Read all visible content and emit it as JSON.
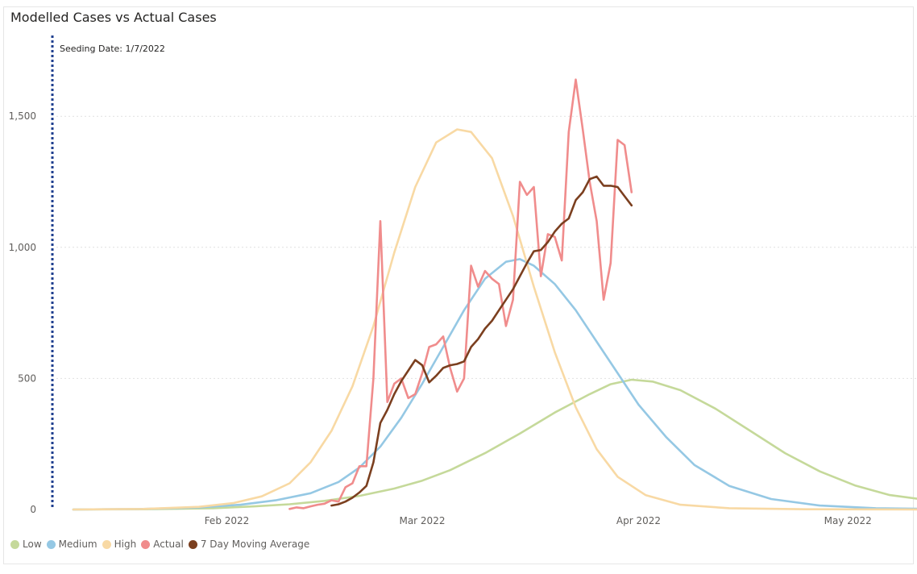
{
  "chart_data": {
    "type": "line",
    "title": "Modelled Cases vs Actual Cases",
    "annotation": "Seeding Date: 1/7/2022",
    "annotation_date": "2022-01-07",
    "x_ticks": [
      {
        "date": "2022-02-01",
        "label": "Feb 2022"
      },
      {
        "date": "2022-03-01",
        "label": "Mar 2022"
      },
      {
        "date": "2022-04-01",
        "label": "Apr 2022"
      },
      {
        "date": "2022-05-01",
        "label": "May 2022"
      }
    ],
    "x_range": [
      "2022-01-07",
      "2022-05-14"
    ],
    "y_ticks": [
      {
        "value": 0,
        "label": "0"
      },
      {
        "value": 500,
        "label": "500"
      },
      {
        "value": 1000,
        "label": "1,000"
      },
      {
        "value": 1500,
        "label": "1,500"
      }
    ],
    "ylim": [
      0,
      1800
    ],
    "grid": "horizontal dotted",
    "legend_position": "bottom-left",
    "series": [
      {
        "name": "Low",
        "color": "#c5d99a",
        "points": [
          [
            "2022-01-10",
            0
          ],
          [
            "2022-01-20",
            1
          ],
          [
            "2022-01-30",
            5
          ],
          [
            "2022-02-05",
            12
          ],
          [
            "2022-02-10",
            20
          ],
          [
            "2022-02-15",
            33
          ],
          [
            "2022-02-20",
            52
          ],
          [
            "2022-02-25",
            80
          ],
          [
            "2022-03-01",
            110
          ],
          [
            "2022-03-05",
            150
          ],
          [
            "2022-03-10",
            215
          ],
          [
            "2022-03-15",
            290
          ],
          [
            "2022-03-20",
            370
          ],
          [
            "2022-03-25",
            440
          ],
          [
            "2022-03-28",
            478
          ],
          [
            "2022-03-31",
            495
          ],
          [
            "2022-04-03",
            488
          ],
          [
            "2022-04-07",
            455
          ],
          [
            "2022-04-12",
            385
          ],
          [
            "2022-04-17",
            300
          ],
          [
            "2022-04-22",
            215
          ],
          [
            "2022-04-27",
            145
          ],
          [
            "2022-05-02",
            92
          ],
          [
            "2022-05-07",
            55
          ],
          [
            "2022-05-14",
            30
          ]
        ]
      },
      {
        "name": "Medium",
        "color": "#95c8e4",
        "points": [
          [
            "2022-01-10",
            0
          ],
          [
            "2022-01-20",
            2
          ],
          [
            "2022-01-28",
            8
          ],
          [
            "2022-02-03",
            18
          ],
          [
            "2022-02-08",
            35
          ],
          [
            "2022-02-13",
            62
          ],
          [
            "2022-02-17",
            105
          ],
          [
            "2022-02-20",
            160
          ],
          [
            "2022-02-23",
            240
          ],
          [
            "2022-02-26",
            350
          ],
          [
            "2022-03-01",
            480
          ],
          [
            "2022-03-04",
            620
          ],
          [
            "2022-03-07",
            760
          ],
          [
            "2022-03-10",
            880
          ],
          [
            "2022-03-13",
            945
          ],
          [
            "2022-03-15",
            955
          ],
          [
            "2022-03-17",
            930
          ],
          [
            "2022-03-20",
            860
          ],
          [
            "2022-03-23",
            760
          ],
          [
            "2022-03-26",
            640
          ],
          [
            "2022-03-29",
            520
          ],
          [
            "2022-04-01",
            400
          ],
          [
            "2022-04-05",
            275
          ],
          [
            "2022-04-09",
            170
          ],
          [
            "2022-04-14",
            90
          ],
          [
            "2022-04-20",
            40
          ],
          [
            "2022-04-27",
            15
          ],
          [
            "2022-05-05",
            5
          ],
          [
            "2022-05-14",
            2
          ]
        ]
      },
      {
        "name": "High",
        "color": "#f8d9a4",
        "points": [
          [
            "2022-01-10",
            0
          ],
          [
            "2022-01-20",
            2
          ],
          [
            "2022-01-28",
            10
          ],
          [
            "2022-02-02",
            25
          ],
          [
            "2022-02-06",
            50
          ],
          [
            "2022-02-10",
            100
          ],
          [
            "2022-02-13",
            180
          ],
          [
            "2022-02-16",
            300
          ],
          [
            "2022-02-19",
            470
          ],
          [
            "2022-02-22",
            700
          ],
          [
            "2022-02-25",
            980
          ],
          [
            "2022-02-28",
            1230
          ],
          [
            "2022-03-03",
            1400
          ],
          [
            "2022-03-06",
            1450
          ],
          [
            "2022-03-08",
            1440
          ],
          [
            "2022-03-11",
            1340
          ],
          [
            "2022-03-14",
            1120
          ],
          [
            "2022-03-17",
            850
          ],
          [
            "2022-03-20",
            600
          ],
          [
            "2022-03-23",
            390
          ],
          [
            "2022-03-26",
            230
          ],
          [
            "2022-03-29",
            125
          ],
          [
            "2022-04-02",
            55
          ],
          [
            "2022-04-07",
            18
          ],
          [
            "2022-04-14",
            5
          ],
          [
            "2022-04-25",
            1
          ],
          [
            "2022-05-14",
            0
          ]
        ]
      },
      {
        "name": "Actual",
        "color": "#f08c8c",
        "points": [
          [
            "2022-02-10",
            2
          ],
          [
            "2022-02-11",
            8
          ],
          [
            "2022-02-12",
            5
          ],
          [
            "2022-02-13",
            12
          ],
          [
            "2022-02-14",
            18
          ],
          [
            "2022-02-15",
            22
          ],
          [
            "2022-02-16",
            35
          ],
          [
            "2022-02-17",
            30
          ],
          [
            "2022-02-18",
            85
          ],
          [
            "2022-02-19",
            100
          ],
          [
            "2022-02-20",
            165
          ],
          [
            "2022-02-21",
            165
          ],
          [
            "2022-02-22",
            500
          ],
          [
            "2022-02-23",
            1100
          ],
          [
            "2022-02-24",
            410
          ],
          [
            "2022-02-25",
            480
          ],
          [
            "2022-02-26",
            500
          ],
          [
            "2022-02-27",
            425
          ],
          [
            "2022-02-28",
            440
          ],
          [
            "2022-03-01",
            520
          ],
          [
            "2022-03-02",
            620
          ],
          [
            "2022-03-03",
            630
          ],
          [
            "2022-03-04",
            660
          ],
          [
            "2022-03-05",
            540
          ],
          [
            "2022-03-06",
            450
          ],
          [
            "2022-03-07",
            500
          ],
          [
            "2022-03-08",
            930
          ],
          [
            "2022-03-09",
            850
          ],
          [
            "2022-03-10",
            910
          ],
          [
            "2022-03-11",
            880
          ],
          [
            "2022-03-12",
            860
          ],
          [
            "2022-03-13",
            700
          ],
          [
            "2022-03-14",
            800
          ],
          [
            "2022-03-15",
            1250
          ],
          [
            "2022-03-16",
            1200
          ],
          [
            "2022-03-17",
            1230
          ],
          [
            "2022-03-18",
            890
          ],
          [
            "2022-03-19",
            1050
          ],
          [
            "2022-03-20",
            1040
          ],
          [
            "2022-03-21",
            950
          ],
          [
            "2022-03-22",
            1440
          ],
          [
            "2022-03-23",
            1640
          ],
          [
            "2022-03-24",
            1450
          ],
          [
            "2022-03-25",
            1250
          ],
          [
            "2022-03-26",
            1100
          ],
          [
            "2022-03-27",
            800
          ],
          [
            "2022-03-28",
            940
          ],
          [
            "2022-03-29",
            1410
          ],
          [
            "2022-03-30",
            1390
          ],
          [
            "2022-03-31",
            1210
          ]
        ]
      },
      {
        "name": "7 Day Moving Average",
        "color": "#7b3f1f",
        "points": [
          [
            "2022-02-16",
            15
          ],
          [
            "2022-02-17",
            20
          ],
          [
            "2022-02-18",
            30
          ],
          [
            "2022-02-19",
            45
          ],
          [
            "2022-02-20",
            65
          ],
          [
            "2022-02-21",
            90
          ],
          [
            "2022-02-22",
            180
          ],
          [
            "2022-02-23",
            330
          ],
          [
            "2022-02-24",
            380
          ],
          [
            "2022-02-25",
            440
          ],
          [
            "2022-02-26",
            490
          ],
          [
            "2022-02-27",
            530
          ],
          [
            "2022-02-28",
            570
          ],
          [
            "2022-03-01",
            550
          ],
          [
            "2022-03-02",
            485
          ],
          [
            "2022-03-03",
            510
          ],
          [
            "2022-03-04",
            540
          ],
          [
            "2022-03-05",
            550
          ],
          [
            "2022-03-06",
            555
          ],
          [
            "2022-03-07",
            565
          ],
          [
            "2022-03-08",
            620
          ],
          [
            "2022-03-09",
            650
          ],
          [
            "2022-03-10",
            690
          ],
          [
            "2022-03-11",
            720
          ],
          [
            "2022-03-12",
            760
          ],
          [
            "2022-03-13",
            800
          ],
          [
            "2022-03-14",
            840
          ],
          [
            "2022-03-15",
            890
          ],
          [
            "2022-03-16",
            940
          ],
          [
            "2022-03-17",
            985
          ],
          [
            "2022-03-18",
            990
          ],
          [
            "2022-03-19",
            1020
          ],
          [
            "2022-03-20",
            1060
          ],
          [
            "2022-03-21",
            1090
          ],
          [
            "2022-03-22",
            1110
          ],
          [
            "2022-03-23",
            1180
          ],
          [
            "2022-03-24",
            1210
          ],
          [
            "2022-03-25",
            1260
          ],
          [
            "2022-03-26",
            1270
          ],
          [
            "2022-03-27",
            1235
          ],
          [
            "2022-03-28",
            1235
          ],
          [
            "2022-03-29",
            1230
          ],
          [
            "2022-03-30",
            1195
          ],
          [
            "2022-03-31",
            1160
          ]
        ]
      }
    ]
  }
}
